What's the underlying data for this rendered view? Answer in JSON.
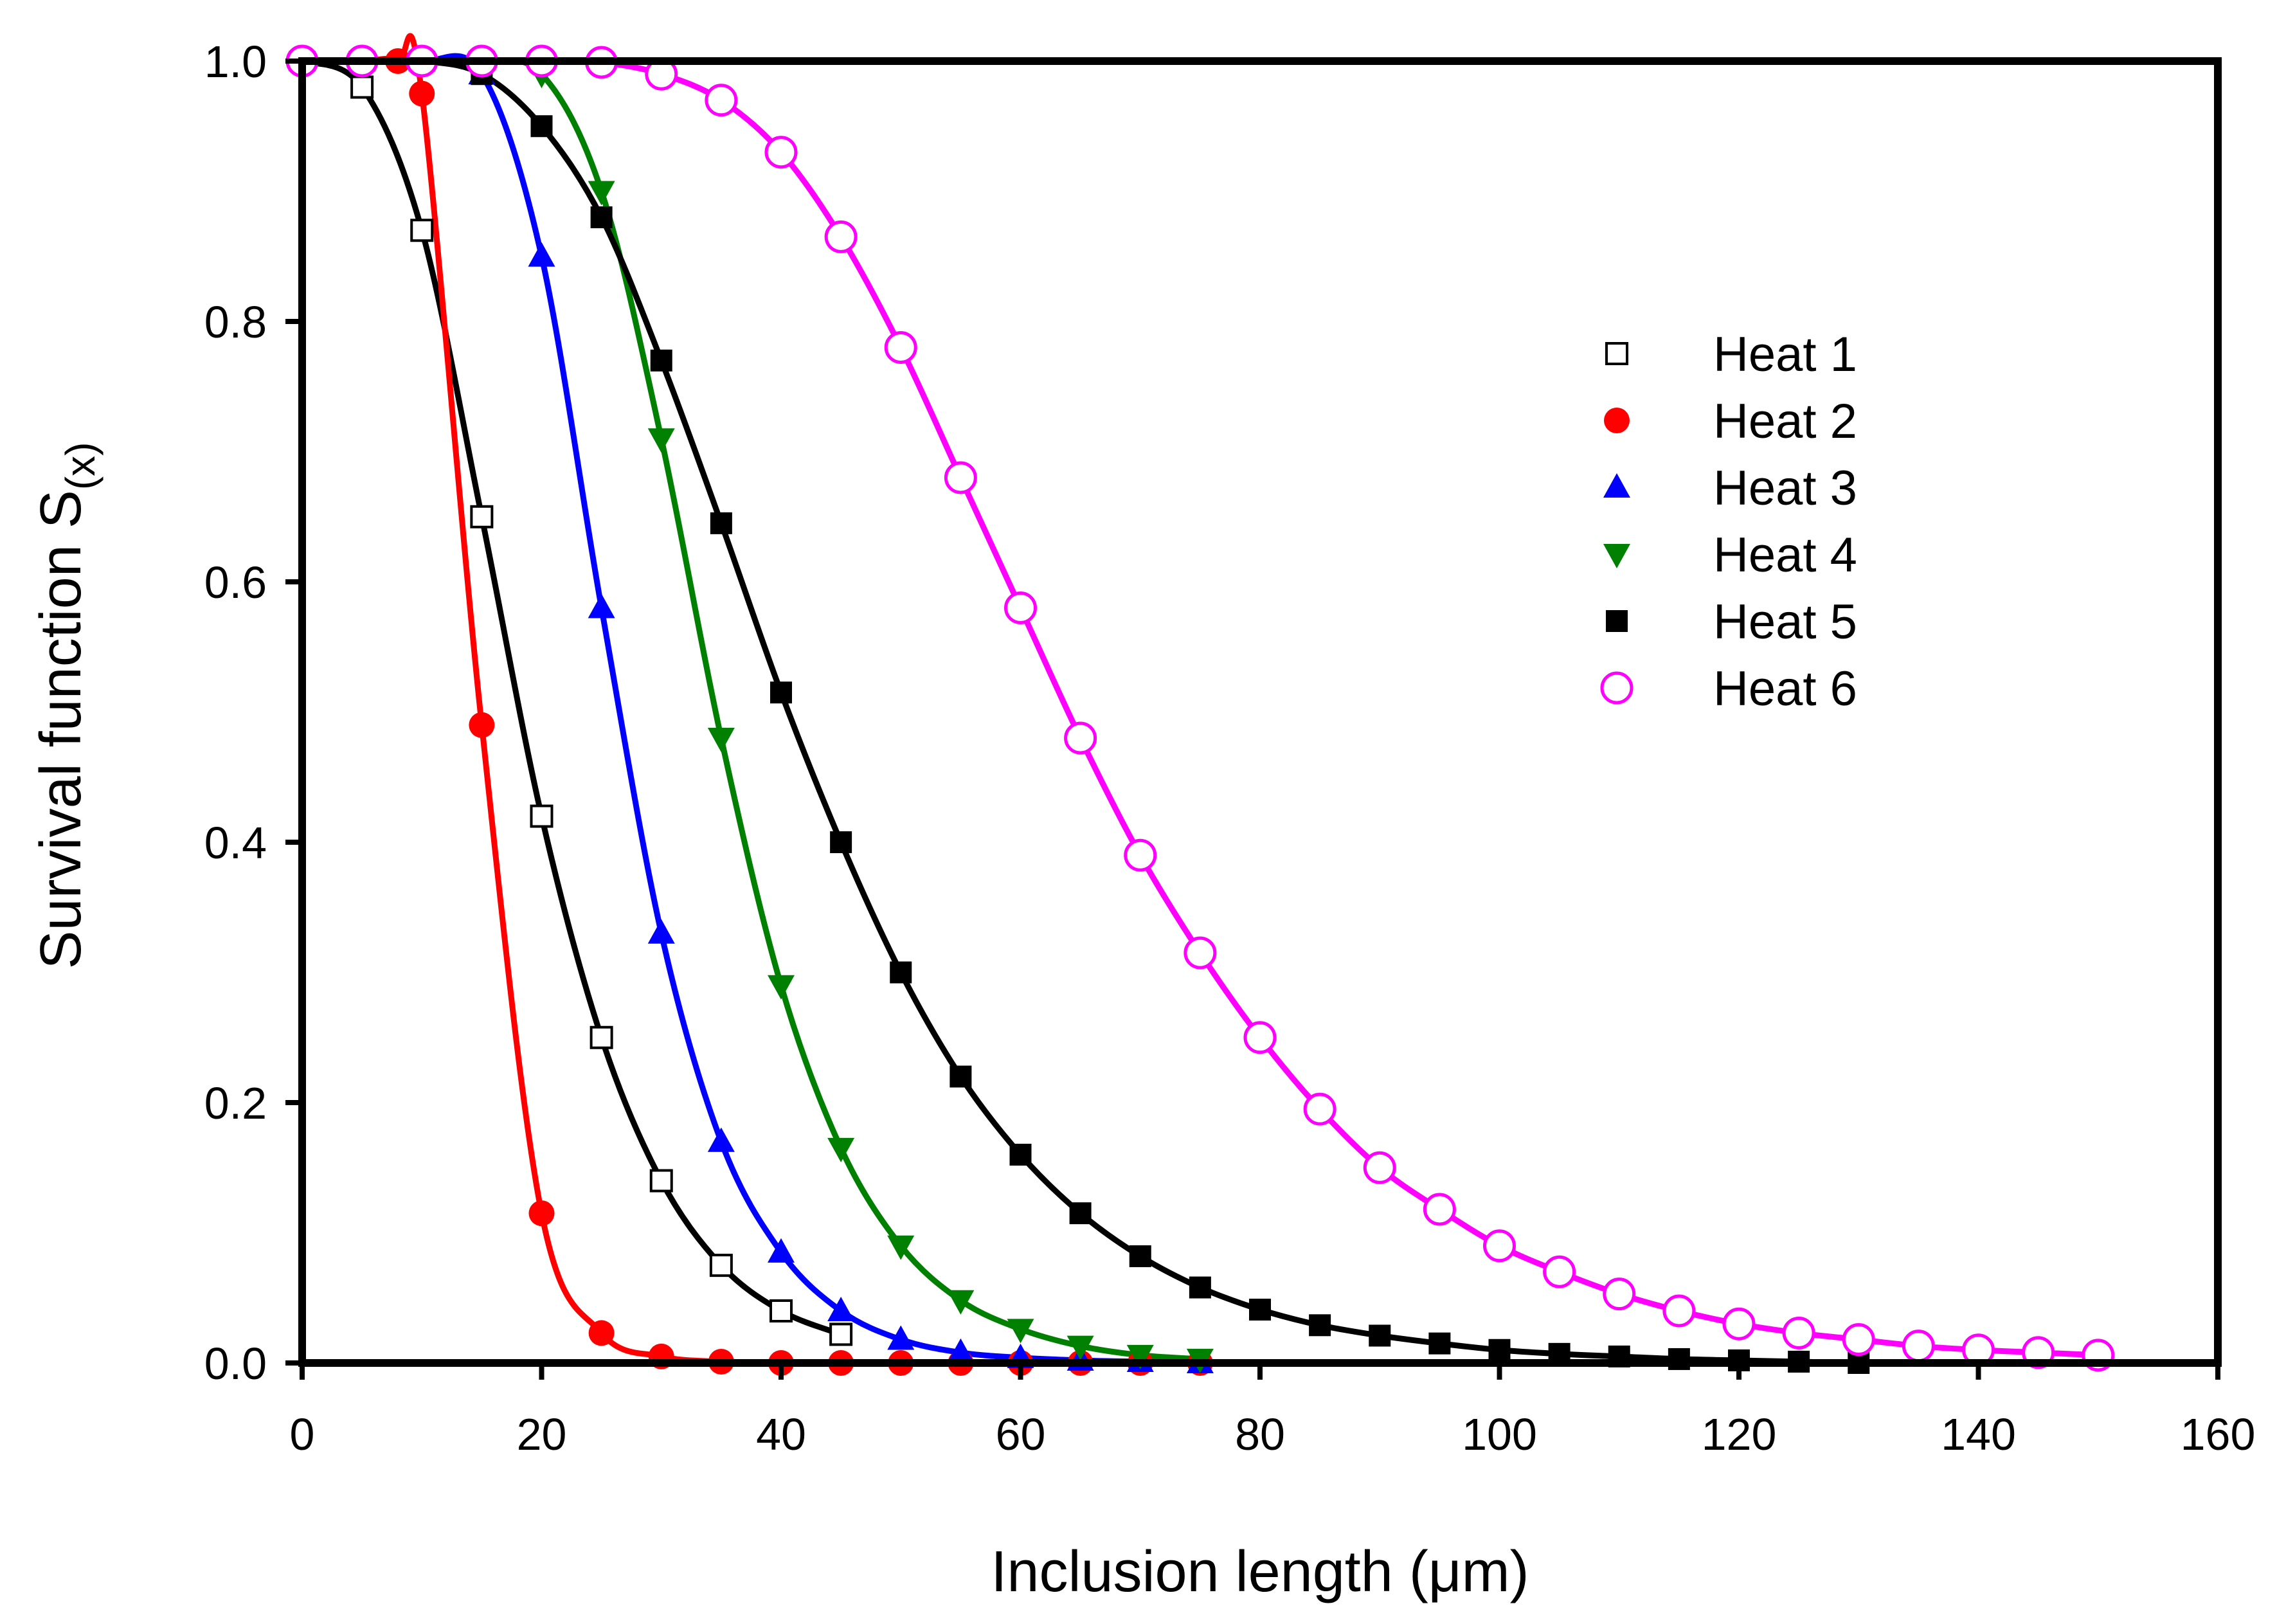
{
  "chart_data": {
    "type": "line",
    "title": "",
    "xlabel": "Inclusion length (μm)",
    "ylabel_main": "Survival function  S",
    "ylabel_sub": "(x)",
    "xlim": [
      0,
      160
    ],
    "ylim": [
      0,
      1.0
    ],
    "x_ticks": [
      0,
      20,
      40,
      60,
      80,
      100,
      120,
      140,
      160
    ],
    "y_ticks": [
      0.0,
      0.2,
      0.4,
      0.6,
      0.8,
      1.0
    ],
    "x_tick_labels": [
      "0",
      "20",
      "40",
      "60",
      "80",
      "100",
      "120",
      "140",
      "160"
    ],
    "y_tick_labels": [
      "0.0",
      "0.2",
      "0.4",
      "0.6",
      "0.8",
      "1.0"
    ],
    "grid": false,
    "legend_position": "upper-right-inside",
    "series": [
      {
        "name": "Heat 1",
        "color": "#000000",
        "marker": "square-open",
        "x": [
          0,
          5,
          10,
          15,
          20,
          25,
          30,
          35,
          40,
          45
        ],
        "y": [
          1.0,
          0.98,
          0.87,
          0.65,
          0.42,
          0.25,
          0.14,
          0.075,
          0.04,
          0.022
        ]
      },
      {
        "name": "Heat 2",
        "color": "#ff0000",
        "marker": "circle-filled",
        "x": [
          0,
          5,
          8,
          10,
          15,
          20,
          25,
          30,
          35,
          40,
          45,
          50,
          55,
          60,
          65,
          70,
          75
        ],
        "y": [
          1.0,
          1.0,
          1.0,
          0.975,
          0.49,
          0.115,
          0.023,
          0.005,
          0.001,
          0.0,
          0.0,
          0.0,
          0.0,
          0.0,
          0.0,
          0.0,
          0.0
        ]
      },
      {
        "name": "Heat 3",
        "color": "#0000ff",
        "marker": "triangle-up-filled",
        "x": [
          0,
          5,
          10,
          15,
          20,
          25,
          30,
          35,
          40,
          45,
          50,
          55,
          60,
          65,
          70,
          75
        ],
        "y": [
          1.0,
          1.0,
          1.0,
          0.99,
          0.85,
          0.58,
          0.33,
          0.17,
          0.085,
          0.04,
          0.018,
          0.008,
          0.004,
          0.002,
          0.001,
          0.0
        ]
      },
      {
        "name": "Heat 4",
        "color": "#008000",
        "marker": "triangle-down-filled",
        "x": [
          0,
          5,
          10,
          15,
          20,
          25,
          30,
          35,
          40,
          45,
          50,
          55,
          60,
          65,
          70,
          75
        ],
        "y": [
          1.0,
          1.0,
          1.0,
          1.0,
          0.99,
          0.9,
          0.71,
          0.48,
          0.29,
          0.165,
          0.09,
          0.048,
          0.026,
          0.013,
          0.006,
          0.003
        ]
      },
      {
        "name": "Heat 5",
        "color": "#000000",
        "marker": "square-filled",
        "x": [
          0,
          5,
          10,
          15,
          20,
          25,
          30,
          35,
          40,
          45,
          50,
          55,
          60,
          65,
          70,
          75,
          80,
          85,
          90,
          95,
          100,
          105,
          110,
          115,
          120,
          125,
          130
        ],
        "y": [
          1.0,
          1.0,
          1.0,
          0.99,
          0.95,
          0.88,
          0.77,
          0.645,
          0.515,
          0.4,
          0.3,
          0.22,
          0.16,
          0.115,
          0.082,
          0.058,
          0.041,
          0.029,
          0.021,
          0.015,
          0.01,
          0.007,
          0.005,
          0.003,
          0.002,
          0.001,
          0.0
        ]
      },
      {
        "name": "Heat 6",
        "color": "#ff00ff",
        "marker": "circle-open",
        "x": [
          0,
          5,
          10,
          15,
          20,
          25,
          30,
          35,
          40,
          45,
          50,
          55,
          60,
          65,
          70,
          75,
          80,
          85,
          90,
          95,
          100,
          105,
          110,
          115,
          120,
          125,
          130,
          135,
          140,
          145,
          150
        ],
        "y": [
          1.0,
          1.0,
          1.0,
          1.0,
          1.0,
          0.999,
          0.99,
          0.97,
          0.93,
          0.865,
          0.78,
          0.68,
          0.58,
          0.48,
          0.39,
          0.315,
          0.25,
          0.195,
          0.15,
          0.118,
          0.09,
          0.07,
          0.053,
          0.04,
          0.03,
          0.023,
          0.018,
          0.013,
          0.01,
          0.008,
          0.006
        ]
      }
    ]
  }
}
